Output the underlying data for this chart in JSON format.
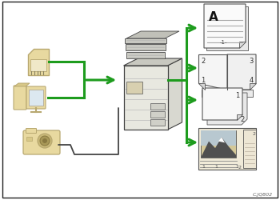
{
  "bg_color": "#ffffff",
  "border_color": "#222222",
  "arrow_color": "#1e9c1e",
  "device_color": "#e8d9a0",
  "device_edge": "#b8a870",
  "paper_color": "#f8f8f8",
  "paper_border": "#555555",
  "caption": "C.JQ802",
  "figsize": [
    3.5,
    2.51
  ],
  "dpi": 100
}
